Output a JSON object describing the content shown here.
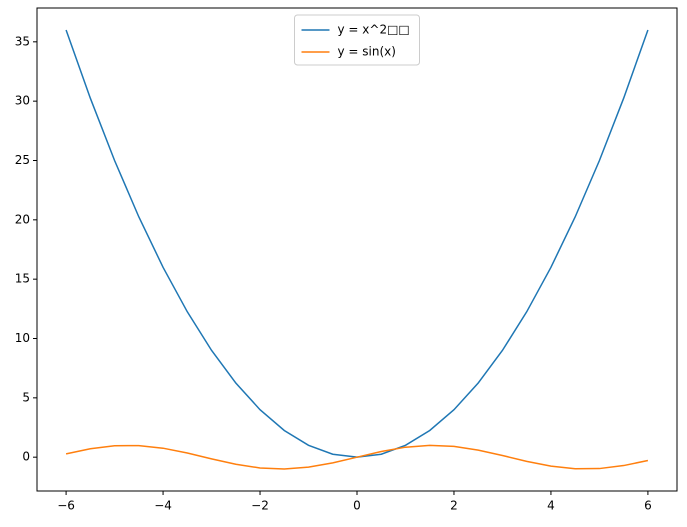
{
  "chart_data": {
    "type": "line",
    "x": [
      -6,
      -5.5,
      -5,
      -4.5,
      -4,
      -3.5,
      -3,
      -2.5,
      -2,
      -1.5,
      -1,
      -0.5,
      0,
      0.5,
      1,
      1.5,
      2,
      2.5,
      3,
      3.5,
      4,
      4.5,
      5,
      5.5,
      6
    ],
    "series": [
      {
        "name": "y = x^2□□",
        "color": "#1f77b4",
        "values": [
          36,
          30.25,
          25,
          20.25,
          16,
          12.25,
          9,
          6.25,
          4,
          2.25,
          1,
          0.25,
          0,
          0.25,
          1,
          2.25,
          4,
          6.25,
          9,
          12.25,
          16,
          20.25,
          25,
          30.25,
          36
        ]
      },
      {
        "name": "y = sin(x)",
        "color": "#ff7f0e",
        "values": [
          0.279,
          0.706,
          0.959,
          0.978,
          0.757,
          0.351,
          -0.141,
          -0.598,
          -0.909,
          -0.997,
          -0.841,
          -0.479,
          0,
          0.479,
          0.841,
          0.997,
          0.909,
          0.598,
          0.141,
          -0.351,
          -0.757,
          -0.978,
          -0.959,
          -0.706,
          -0.279
        ]
      }
    ],
    "xlim": [
      -6.6,
      6.6
    ],
    "ylim": [
      -2.85,
      37.85
    ],
    "xticks": [
      {
        "value": -6,
        "label": "−6"
      },
      {
        "value": -4,
        "label": "−4"
      },
      {
        "value": -2,
        "label": "−2"
      },
      0,
      2,
      4,
      6
    ],
    "yticks": [
      0,
      5,
      10,
      15,
      20,
      25,
      30,
      35
    ],
    "legend": "upper center",
    "grid": false
  }
}
